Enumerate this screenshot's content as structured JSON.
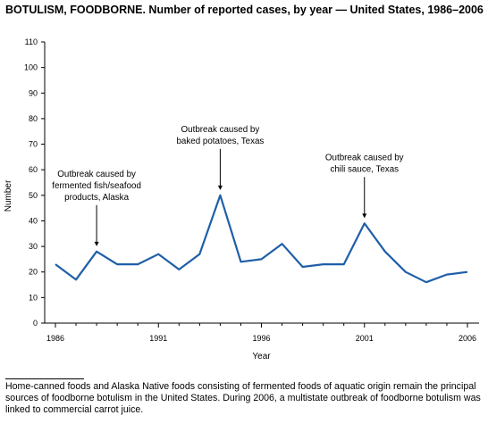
{
  "title": "BOTULISM, FOODBORNE. Number of reported cases, by year — United States, 1986–2006",
  "footnote": "Home-canned foods and Alaska Native foods consisting of fermented foods of aquatic origin remain the principal sources of foodborne botulism in the United States. During 2006, a multistate outbreak of foodborne botulism was linked to commercial carrot juice.",
  "chart_data": {
    "type": "line",
    "title": "BOTULISM, FOODBORNE. Number of reported cases, by year — United States, 1986–2006",
    "xlabel": "Year",
    "ylabel": "Number",
    "xlim": [
      1986,
      2006
    ],
    "ylim": [
      0,
      110
    ],
    "x_ticks": [
      1986,
      1991,
      1996,
      2001,
      2006
    ],
    "y_ticks": [
      0,
      10,
      20,
      30,
      40,
      50,
      60,
      70,
      80,
      90,
      100,
      110
    ],
    "grid": false,
    "line_color": "#1f5fa8",
    "x": [
      1986,
      1987,
      1988,
      1989,
      1990,
      1991,
      1992,
      1993,
      1994,
      1995,
      1996,
      1997,
      1998,
      1999,
      2000,
      2001,
      2002,
      2003,
      2004,
      2005,
      2006
    ],
    "values": [
      23,
      17,
      28,
      23,
      23,
      27,
      21,
      27,
      50,
      24,
      25,
      31,
      22,
      23,
      23,
      39,
      28,
      20,
      16,
      19,
      20
    ],
    "annotations": [
      {
        "lines": [
          "Outbreak caused by",
          "fermented fish/seafood",
          "products, Alaska"
        ],
        "x": 1988,
        "y": 28
      },
      {
        "lines": [
          "Outbreak caused by",
          "baked potatoes, Texas"
        ],
        "x": 1994,
        "y": 50
      },
      {
        "lines": [
          "Outbreak caused by",
          "chili sauce, Texas"
        ],
        "x": 2001,
        "y": 39
      }
    ]
  }
}
